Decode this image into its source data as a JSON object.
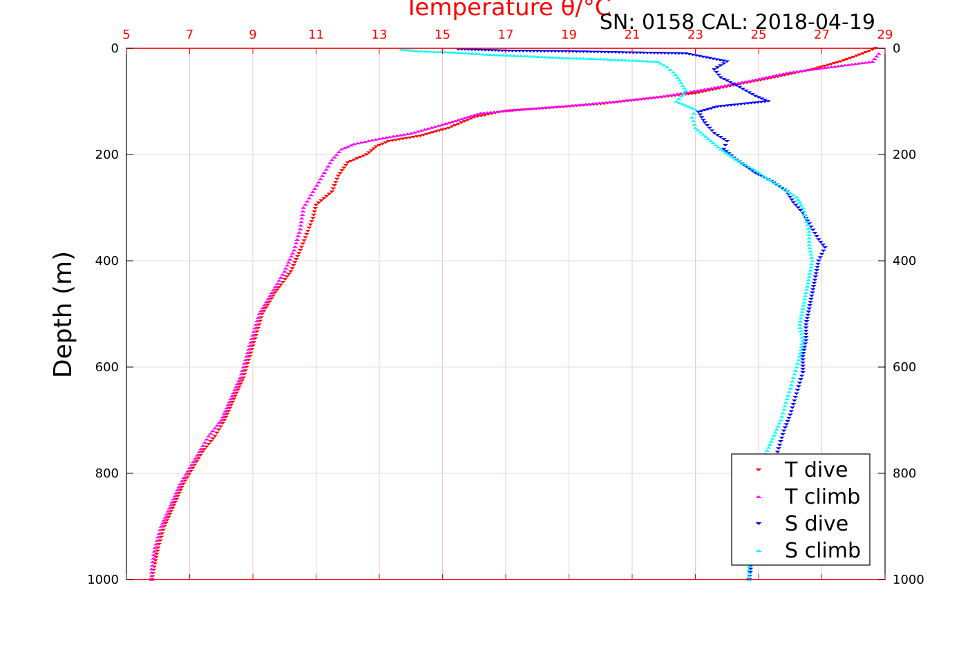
{
  "chart_data": {
    "type": "scatter",
    "title": "Temperature θ/°C",
    "header_text": "SN: 0158  CAL: 2018-04-19",
    "ylabel": "Depth (m)",
    "x_axis_top": {
      "label": "Temperature θ/°C",
      "range": [
        5,
        29
      ],
      "ticks": [
        5,
        7,
        9,
        11,
        13,
        15,
        17,
        19,
        21,
        23,
        25,
        27,
        29
      ],
      "color": "#ff0000"
    },
    "y_axis": {
      "range": [
        0,
        1000
      ],
      "reversed": true,
      "ticks": [
        0,
        200,
        400,
        600,
        800,
        1000
      ]
    },
    "grid": true,
    "legend_position": "bottom-right",
    "series": [
      {
        "name": "T dive",
        "marker": "triangle-down",
        "color": "#ff0000",
        "points": [
          [
            28.7,
            0
          ],
          [
            28.3,
            10
          ],
          [
            27.6,
            25
          ],
          [
            26.7,
            40
          ],
          [
            25.5,
            55
          ],
          [
            24.2,
            70
          ],
          [
            23.0,
            85
          ],
          [
            21.5,
            95
          ],
          [
            20.0,
            105
          ],
          [
            18.5,
            112
          ],
          [
            17.0,
            118
          ],
          [
            16.0,
            130
          ],
          [
            15.2,
            150
          ],
          [
            14.3,
            165
          ],
          [
            13.3,
            175
          ],
          [
            12.9,
            185
          ],
          [
            12.6,
            200
          ],
          [
            12.0,
            215
          ],
          [
            11.7,
            240
          ],
          [
            11.5,
            270
          ],
          [
            11.0,
            295
          ],
          [
            10.9,
            320
          ],
          [
            10.7,
            350
          ],
          [
            10.5,
            380
          ],
          [
            10.2,
            420
          ],
          [
            9.7,
            460
          ],
          [
            9.3,
            500
          ],
          [
            9.1,
            540
          ],
          [
            8.9,
            580
          ],
          [
            8.7,
            620
          ],
          [
            8.4,
            660
          ],
          [
            8.1,
            700
          ],
          [
            7.8,
            730
          ],
          [
            7.4,
            760
          ],
          [
            7.1,
            790
          ],
          [
            6.8,
            820
          ],
          [
            6.5,
            860
          ],
          [
            6.2,
            900
          ],
          [
            6.0,
            940
          ],
          [
            5.9,
            970
          ],
          [
            5.8,
            1000
          ]
        ]
      },
      {
        "name": "T climb",
        "marker": "triangle-up",
        "color": "#ff00ff",
        "points": [
          [
            28.8,
            10
          ],
          [
            28.6,
            25
          ],
          [
            27.3,
            35
          ],
          [
            26.0,
            45
          ],
          [
            24.8,
            60
          ],
          [
            23.5,
            75
          ],
          [
            22.0,
            90
          ],
          [
            20.5,
            100
          ],
          [
            19.0,
            108
          ],
          [
            17.5,
            115
          ],
          [
            16.2,
            122
          ],
          [
            15.2,
            140
          ],
          [
            14.0,
            160
          ],
          [
            13.0,
            170
          ],
          [
            12.2,
            180
          ],
          [
            11.8,
            190
          ],
          [
            11.5,
            210
          ],
          [
            11.2,
            240
          ],
          [
            10.9,
            270
          ],
          [
            10.6,
            300
          ],
          [
            10.5,
            340
          ],
          [
            10.3,
            380
          ],
          [
            10.0,
            420
          ],
          [
            9.6,
            460
          ],
          [
            9.2,
            500
          ],
          [
            9.0,
            540
          ],
          [
            8.8,
            580
          ],
          [
            8.6,
            620
          ],
          [
            8.3,
            660
          ],
          [
            8.0,
            700
          ],
          [
            7.6,
            730
          ],
          [
            7.3,
            760
          ],
          [
            7.0,
            790
          ],
          [
            6.7,
            820
          ],
          [
            6.4,
            860
          ],
          [
            6.1,
            900
          ],
          [
            5.9,
            940
          ],
          [
            5.8,
            980
          ],
          [
            5.8,
            1000
          ]
        ]
      },
      {
        "name": "S dive",
        "marker": "triangle-down",
        "color": "#0000ff",
        "points": [
          [
            15.5,
            2
          ],
          [
            17.1,
            5
          ],
          [
            18.9,
            6
          ],
          [
            20.7,
            8
          ],
          [
            22.7,
            10
          ],
          [
            24.0,
            25
          ],
          [
            23.6,
            40
          ],
          [
            23.8,
            55
          ],
          [
            24.3,
            70
          ],
          [
            24.9,
            90
          ],
          [
            25.3,
            100
          ],
          [
            23.7,
            110
          ],
          [
            23.1,
            120
          ],
          [
            23.3,
            140
          ],
          [
            23.6,
            160
          ],
          [
            24.0,
            175
          ],
          [
            23.9,
            190
          ],
          [
            24.3,
            210
          ],
          [
            24.9,
            235
          ],
          [
            25.4,
            250
          ],
          [
            25.9,
            270
          ],
          [
            26.1,
            290
          ],
          [
            26.4,
            310
          ],
          [
            26.6,
            330
          ],
          [
            26.9,
            360
          ],
          [
            27.1,
            375
          ],
          [
            26.9,
            400
          ],
          [
            26.8,
            430
          ],
          [
            26.7,
            460
          ],
          [
            26.6,
            490
          ],
          [
            26.5,
            520
          ],
          [
            26.5,
            550
          ],
          [
            26.4,
            580
          ],
          [
            26.4,
            610
          ],
          [
            26.2,
            650
          ],
          [
            26.0,
            690
          ],
          [
            25.8,
            720
          ],
          [
            25.6,
            760
          ],
          [
            25.4,
            800
          ],
          [
            25.2,
            840
          ],
          [
            25.0,
            880
          ],
          [
            24.9,
            920
          ],
          [
            24.8,
            960
          ],
          [
            24.7,
            1000
          ]
        ]
      },
      {
        "name": "S climb",
        "marker": "triangle-up",
        "color": "#00ffff",
        "points": [
          [
            13.7,
            2
          ],
          [
            14.2,
            5
          ],
          [
            15.5,
            8
          ],
          [
            16.5,
            12
          ],
          [
            17.8,
            15
          ],
          [
            18.8,
            18
          ],
          [
            20.0,
            20
          ],
          [
            21.8,
            25
          ],
          [
            22.1,
            35
          ],
          [
            22.3,
            45
          ],
          [
            22.5,
            60
          ],
          [
            22.7,
            80
          ],
          [
            22.4,
            100
          ],
          [
            23.0,
            115
          ],
          [
            22.9,
            130
          ],
          [
            23.0,
            150
          ],
          [
            23.4,
            170
          ],
          [
            23.8,
            190
          ],
          [
            24.3,
            210
          ],
          [
            24.9,
            230
          ],
          [
            25.4,
            250
          ],
          [
            25.8,
            265
          ],
          [
            26.2,
            280
          ],
          [
            26.4,
            300
          ],
          [
            26.5,
            320
          ],
          [
            26.6,
            345
          ],
          [
            26.6,
            370
          ],
          [
            26.7,
            400
          ],
          [
            26.6,
            430
          ],
          [
            26.5,
            460
          ],
          [
            26.4,
            490
          ],
          [
            26.3,
            520
          ],
          [
            26.4,
            550
          ],
          [
            26.3,
            580
          ],
          [
            26.1,
            620
          ],
          [
            25.9,
            660
          ],
          [
            25.7,
            700
          ],
          [
            25.4,
            740
          ],
          [
            25.1,
            780
          ],
          [
            24.9,
            820
          ],
          [
            24.8,
            860
          ],
          [
            24.7,
            900
          ],
          [
            24.7,
            950
          ],
          [
            24.7,
            1000
          ]
        ]
      }
    ]
  }
}
